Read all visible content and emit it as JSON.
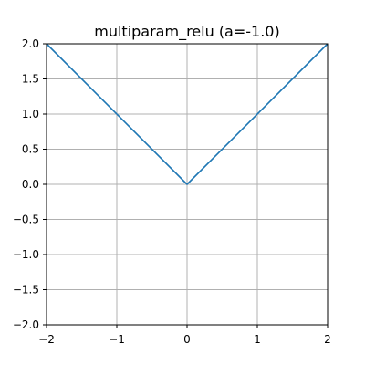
{
  "chart_data": {
    "type": "line",
    "title": "multiparam_relu (a=-1.0)",
    "xlabel": "",
    "ylabel": "",
    "xlim": [
      -2,
      2
    ],
    "ylim": [
      -2,
      2
    ],
    "x_ticks": [
      -2,
      -1,
      0,
      1,
      2
    ],
    "x_tick_labels": [
      "−2",
      "−1",
      "0",
      "1",
      "2"
    ],
    "y_ticks": [
      -2.0,
      -1.5,
      -1.0,
      -0.5,
      0.0,
      0.5,
      1.0,
      1.5,
      2.0
    ],
    "y_tick_labels": [
      "−2.0",
      "−1.5",
      "−1.0",
      "−0.5",
      "0.0",
      "0.5",
      "1.0",
      "1.5",
      "2.0"
    ],
    "grid": true,
    "series": [
      {
        "x": [
          -2,
          0,
          2
        ],
        "y": [
          2,
          0,
          2
        ],
        "color": "#1f77b4"
      }
    ]
  }
}
